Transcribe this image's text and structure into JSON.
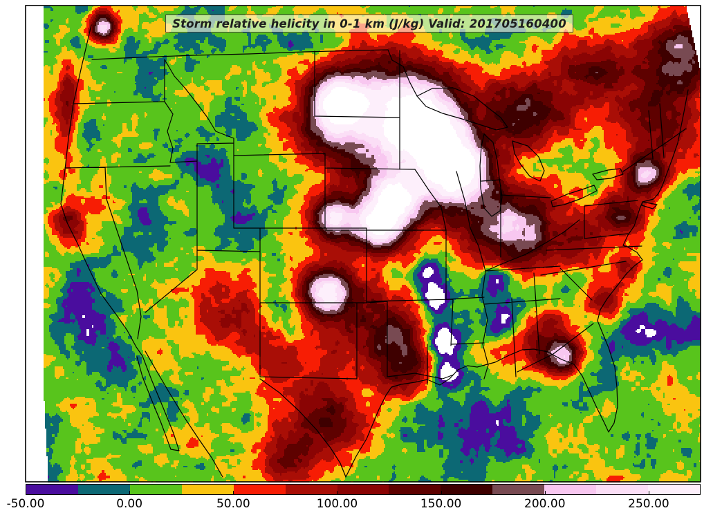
{
  "title": {
    "text": "Storm relative helicity in 0-1 km (J/kg) Valid: 201705160400"
  },
  "map": {
    "frame_color": "#000000",
    "boundary_color": "#000000",
    "no_data_color": "#ffffff"
  },
  "colorbar": {
    "min": -50,
    "max": 275,
    "interval": 25,
    "border_color": "#000000",
    "below_min_color": "#ffffff",
    "above_max_color": "#ffffff",
    "ticks": [
      {
        "value": -50,
        "label": "-50.00"
      },
      {
        "value": 0,
        "label": "0.00"
      },
      {
        "value": 50,
        "label": "50.00"
      },
      {
        "value": 100,
        "label": "100.00"
      },
      {
        "value": 150,
        "label": "150.00"
      },
      {
        "value": 200,
        "label": "200.00"
      },
      {
        "value": 250,
        "label": "250.00"
      }
    ],
    "segments": [
      {
        "from": -50,
        "to": -25,
        "color": "#4a0d9e"
      },
      {
        "from": -25,
        "to": 0,
        "color": "#0c6874"
      },
      {
        "from": 0,
        "to": 25,
        "color": "#58c41c"
      },
      {
        "from": 25,
        "to": 50,
        "color": "#fac410"
      },
      {
        "from": 50,
        "to": 75,
        "color": "#f71d04"
      },
      {
        "from": 75,
        "to": 100,
        "color": "#a90e06"
      },
      {
        "from": 100,
        "to": 125,
        "color": "#8a0404"
      },
      {
        "from": 125,
        "to": 150,
        "color": "#5e0100"
      },
      {
        "from": 150,
        "to": 175,
        "color": "#3e0000"
      },
      {
        "from": 175,
        "to": 200,
        "color": "#784a52"
      },
      {
        "from": 200,
        "to": 225,
        "color": "#f8c7f0"
      },
      {
        "from": 225,
        "to": 250,
        "color": "#fbdef6"
      },
      {
        "from": 250,
        "to": 275,
        "color": "#fdeffb"
      }
    ]
  }
}
